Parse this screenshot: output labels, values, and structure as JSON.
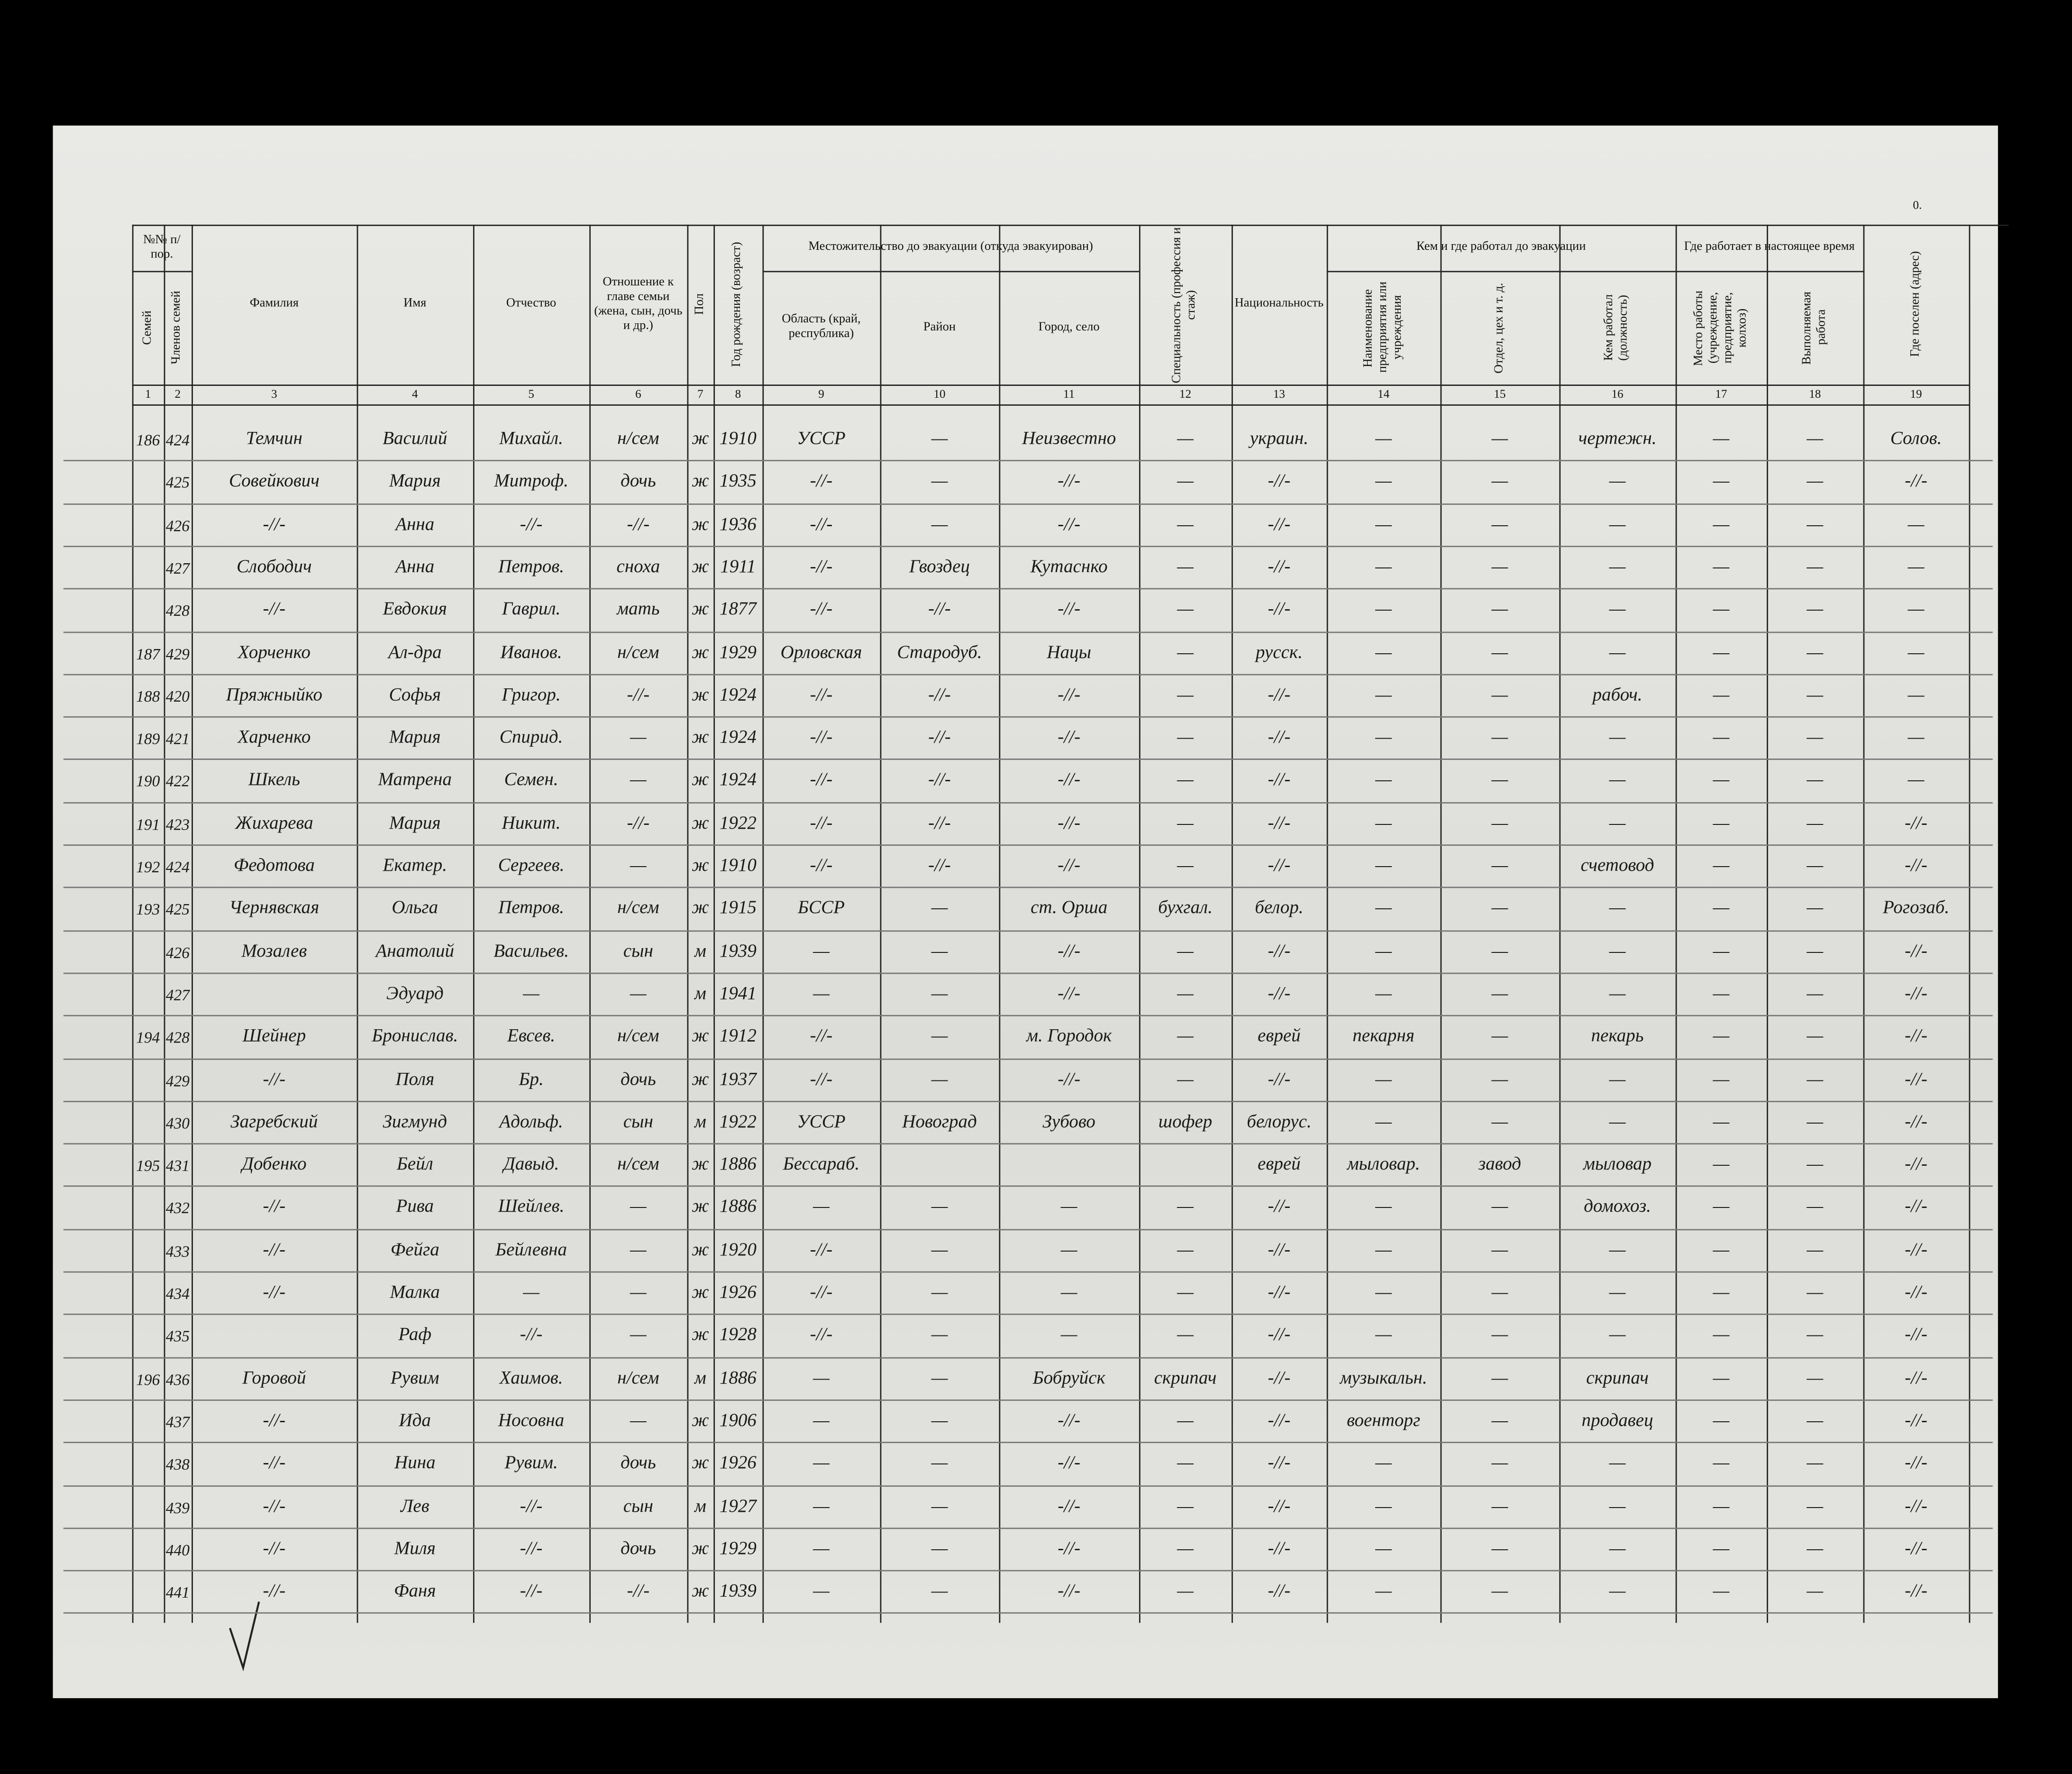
{
  "header": {
    "numbering": "№№ п/пор.",
    "groups": [
      "Местожительство до эвакуации (откуда эвакуирован)",
      "Кем и где работал до эвакуации",
      "Где работает в настоящее время"
    ],
    "columns": [
      "Семей",
      "Членов семей",
      "Фамилия",
      "Имя",
      "Отчество",
      "Отношение к главе семьи (жена, сын, дочь и др.)",
      "Пол",
      "Год рождения (возраст)",
      "Область (край, республика)",
      "Район",
      "Город, село",
      "Специальность (профессия и стаж)",
      "Национальность",
      "Наименование предприятия или учреждения",
      "Отдел, цех и т. д.",
      "Кем работал (должность)",
      "Место работы (учреждение, предприятие, колхоз)",
      "Выполняемая работа",
      "Где поселен (адрес)"
    ],
    "column_numbers": [
      "1",
      "2",
      "3",
      "4",
      "5",
      "6",
      "7",
      "8",
      "9",
      "10",
      "11",
      "12",
      "13",
      "14",
      "15",
      "16",
      "17",
      "18",
      "19"
    ]
  },
  "corner_mark": "0.",
  "rows": [
    [
      "186",
      "424",
      "Темчин",
      "Василий",
      "Михайл.",
      "н/сем",
      "ж",
      "1910",
      "УССР",
      "—",
      "Неизвестно",
      "—",
      "украин.",
      "—",
      "—",
      "чертежн.",
      "—",
      "—",
      "Солов."
    ],
    [
      null,
      "425",
      "Совейкович",
      "Мария",
      "Митроф.",
      "дочь",
      "ж",
      "1935",
      "-//-",
      "—",
      "-//-",
      "—",
      "-//-",
      "—",
      "—",
      "—",
      "—",
      "—",
      "-//-"
    ],
    [
      null,
      "426",
      "-//-",
      "Анна",
      "-//-",
      "-//-",
      "ж",
      "1936",
      "-//-",
      "—",
      "-//-",
      "—",
      "-//-",
      "—",
      "—",
      "—",
      "—",
      "—",
      "—"
    ],
    [
      null,
      "427",
      "Слободич",
      "Анна",
      "Петров.",
      "сноха",
      "ж",
      "1911",
      "-//-",
      "Гвоздец",
      "Кутаснко",
      "—",
      "-//-",
      "—",
      "—",
      "—",
      "—",
      "—",
      "—"
    ],
    [
      null,
      "428",
      "-//-",
      "Евдокия",
      "Гаврил.",
      "мать",
      "ж",
      "1877",
      "-//-",
      "-//-",
      "-//-",
      "—",
      "-//-",
      "—",
      "—",
      "—",
      "—",
      "—",
      "—"
    ],
    [
      "187",
      "429",
      "Хорченко",
      "Ал-дра",
      "Иванов.",
      "н/сем",
      "ж",
      "1929",
      "Орловская",
      "Стародуб.",
      "Нацы",
      "—",
      "русск.",
      "—",
      "—",
      "—",
      "—",
      "—",
      "—"
    ],
    [
      "188",
      "420",
      "Пряжныйко",
      "Софья",
      "Григор.",
      "-//-",
      "ж",
      "1924",
      "-//-",
      "-//-",
      "-//-",
      "—",
      "-//-",
      "—",
      "—",
      "рабоч.",
      "—",
      "—",
      "—"
    ],
    [
      "189",
      "421",
      "Харченко",
      "Мария",
      "Спирид.",
      "—",
      "ж",
      "1924",
      "-//-",
      "-//-",
      "-//-",
      "—",
      "-//-",
      "—",
      "—",
      "—",
      "—",
      "—",
      "—"
    ],
    [
      "190",
      "422",
      "Шкель",
      "Матрена",
      "Семен.",
      "—",
      "ж",
      "1924",
      "-//-",
      "-//-",
      "-//-",
      "—",
      "-//-",
      "—",
      "—",
      "—",
      "—",
      "—",
      "—"
    ],
    [
      "191",
      "423",
      "Жихарева",
      "Мария",
      "Никит.",
      "-//-",
      "ж",
      "1922",
      "-//-",
      "-//-",
      "-//-",
      "—",
      "-//-",
      "—",
      "—",
      "—",
      "—",
      "—",
      "-//-"
    ],
    [
      "192",
      "424",
      "Федотова",
      "Екатер.",
      "Сергеев.",
      "—",
      "ж",
      "1910",
      "-//-",
      "-//-",
      "-//-",
      "—",
      "-//-",
      "—",
      "—",
      "счетовод",
      "—",
      "—",
      "-//-"
    ],
    [
      "193",
      "425",
      "Чернявская",
      "Ольга",
      "Петров.",
      "н/сем",
      "ж",
      "1915",
      "БССР",
      "—",
      "ст. Орша",
      "бухгал.",
      "белор.",
      "—",
      "—",
      "—",
      "—",
      "—",
      "Рогозаб."
    ],
    [
      null,
      "426",
      "Мозалев",
      "Анатолий",
      "Васильев.",
      "сын",
      "м",
      "1939",
      "—",
      "—",
      "-//-",
      "—",
      "-//-",
      "—",
      "—",
      "—",
      "—",
      "—",
      "-//-"
    ],
    [
      null,
      "427",
      null,
      "Эдуард",
      "—",
      "—",
      "м",
      "1941",
      "—",
      "—",
      "-//-",
      "—",
      "-//-",
      "—",
      "—",
      "—",
      "—",
      "—",
      "-//-"
    ],
    [
      "194",
      "428",
      "Шейнер",
      "Бронислав.",
      "Евсев.",
      "н/сем",
      "ж",
      "1912",
      "-//-",
      "—",
      "м. Городок",
      "—",
      "еврей",
      "пекарня",
      "—",
      "пекарь",
      "—",
      "—",
      "-//-"
    ],
    [
      null,
      "429",
      "-//-",
      "Поля",
      "Бр.",
      "дочь",
      "ж",
      "1937",
      "-//-",
      "—",
      "-//-",
      "—",
      "-//-",
      "—",
      "—",
      "—",
      "—",
      "—",
      "-//-"
    ],
    [
      null,
      "430",
      "Загребский",
      "Зигмунд",
      "Адольф.",
      "сын",
      "м",
      "1922",
      "УССР",
      "Новоград",
      "Зубово",
      "шофер",
      "белорус.",
      "—",
      "—",
      "—",
      "—",
      "—",
      "-//-"
    ],
    [
      "195",
      "431",
      "Добенко",
      "Бейл",
      "Давыд.",
      "н/сем",
      "ж",
      "1886",
      "Бессараб.",
      null,
      null,
      null,
      "еврей",
      "мыловар.",
      "завод",
      "мыловар",
      "—",
      "—",
      "-//-"
    ],
    [
      null,
      "432",
      "-//-",
      "Рива",
      "Шейлев.",
      "—",
      "ж",
      "1886",
      "—",
      "—",
      "—",
      "—",
      "-//-",
      "—",
      "—",
      "домохоз.",
      "—",
      "—",
      "-//-"
    ],
    [
      null,
      "433",
      "-//-",
      "Фейга",
      "Бейлевна",
      "—",
      "ж",
      "1920",
      "-//-",
      "—",
      "—",
      "—",
      "-//-",
      "—",
      "—",
      "—",
      "—",
      "—",
      "-//-"
    ],
    [
      null,
      "434",
      "-//-",
      "Малка",
      "—",
      "—",
      "ж",
      "1926",
      "-//-",
      "—",
      "—",
      "—",
      "-//-",
      "—",
      "—",
      "—",
      "—",
      "—",
      "-//-"
    ],
    [
      null,
      "435",
      null,
      "Раф",
      "-//-",
      "—",
      "ж",
      "1928",
      "-//-",
      "—",
      "—",
      "—",
      "-//-",
      "—",
      "—",
      "—",
      "—",
      "—",
      "-//-"
    ],
    [
      "196",
      "436",
      "Горовой",
      "Рувим",
      "Хаимов.",
      "н/сем",
      "м",
      "1886",
      "—",
      "—",
      "Бобруйск",
      "скрипач",
      "-//-",
      "музыкальн.",
      "—",
      "скрипач",
      "—",
      "—",
      "-//-"
    ],
    [
      null,
      "437",
      "-//-",
      "Ида",
      "Носовна",
      "—",
      "ж",
      "1906",
      "—",
      "—",
      "-//-",
      "—",
      "-//-",
      "военторг",
      "—",
      "продавец",
      "—",
      "—",
      "-//-"
    ],
    [
      null,
      "438",
      "-//-",
      "Нина",
      "Рувим.",
      "дочь",
      "ж",
      "1926",
      "—",
      "—",
      "-//-",
      "—",
      "-//-",
      "—",
      "—",
      "—",
      "—",
      "—",
      "-//-"
    ],
    [
      null,
      "439",
      "-//-",
      "Лев",
      "-//-",
      "сын",
      "м",
      "1927",
      "—",
      "—",
      "-//-",
      "—",
      "-//-",
      "—",
      "—",
      "—",
      "—",
      "—",
      "-//-"
    ],
    [
      null,
      "440",
      "-//-",
      "Миля",
      "-//-",
      "дочь",
      "ж",
      "1929",
      "—",
      "—",
      "-//-",
      "—",
      "-//-",
      "—",
      "—",
      "—",
      "—",
      "—",
      "-//-"
    ],
    [
      null,
      "441",
      "-//-",
      "Фаня",
      "-//-",
      "-//-",
      "ж",
      "1939",
      "—",
      "—",
      "-//-",
      "—",
      "-//-",
      "—",
      "—",
      "—",
      "—",
      "—",
      "-//-"
    ]
  ]
}
